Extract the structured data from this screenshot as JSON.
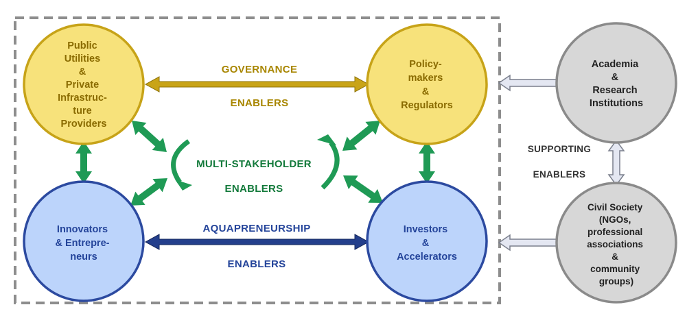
{
  "nodes": {
    "public_utilities": {
      "lines": [
        "Public",
        "Utilities",
        "&",
        "Private",
        "Infrastruc-",
        "ture",
        "Providers"
      ]
    },
    "policy_makers": {
      "lines": [
        "Policy-",
        "makers",
        "&",
        "Regulators"
      ]
    },
    "innovators": {
      "lines": [
        "Innovators",
        "& Entrepre-",
        "neurs"
      ]
    },
    "investors": {
      "lines": [
        "Investors",
        "&",
        "Accelerators"
      ]
    },
    "academia": {
      "lines": [
        "Academia",
        "&",
        "Research",
        "Institutions"
      ]
    },
    "civil_society": {
      "lines": [
        "Civil Society",
        "(NGOs,",
        "professional",
        "associations",
        "&",
        "community",
        "groups)"
      ]
    }
  },
  "labels": {
    "governance": "GOVERNANCE",
    "governance_enablers": "ENABLERS",
    "multi_stakeholder": "MULTI-STAKEHOLDER",
    "multi_stakeholder_enablers": "ENABLERS",
    "aquapreneurship": "AQUAPRENEURSHIP",
    "aquapreneurship_enablers": "ENABLERS",
    "supporting": "SUPPORTING",
    "supporting_enablers": "ENABLERS"
  },
  "colors": {
    "yellow_fill": "#f7e27b",
    "yellow_stroke": "#c7a318",
    "yellow_text": "#8a6b00",
    "blue_fill": "#bcd4fb",
    "blue_stroke": "#2c4aa0",
    "blue_text": "#24449a",
    "gray_fill": "#d7d7d7",
    "gray_stroke": "#8a8a8a",
    "gray_text": "#222222",
    "green": "#1f9a55",
    "green_text": "#137a3b",
    "gold_arrow": "#c9a417",
    "navy_arrow": "#243f8c",
    "light_arrow_fill": "#e4e7f2",
    "light_arrow_stroke": "#7a7f8c",
    "dashed_border": "#8d8d8d"
  }
}
